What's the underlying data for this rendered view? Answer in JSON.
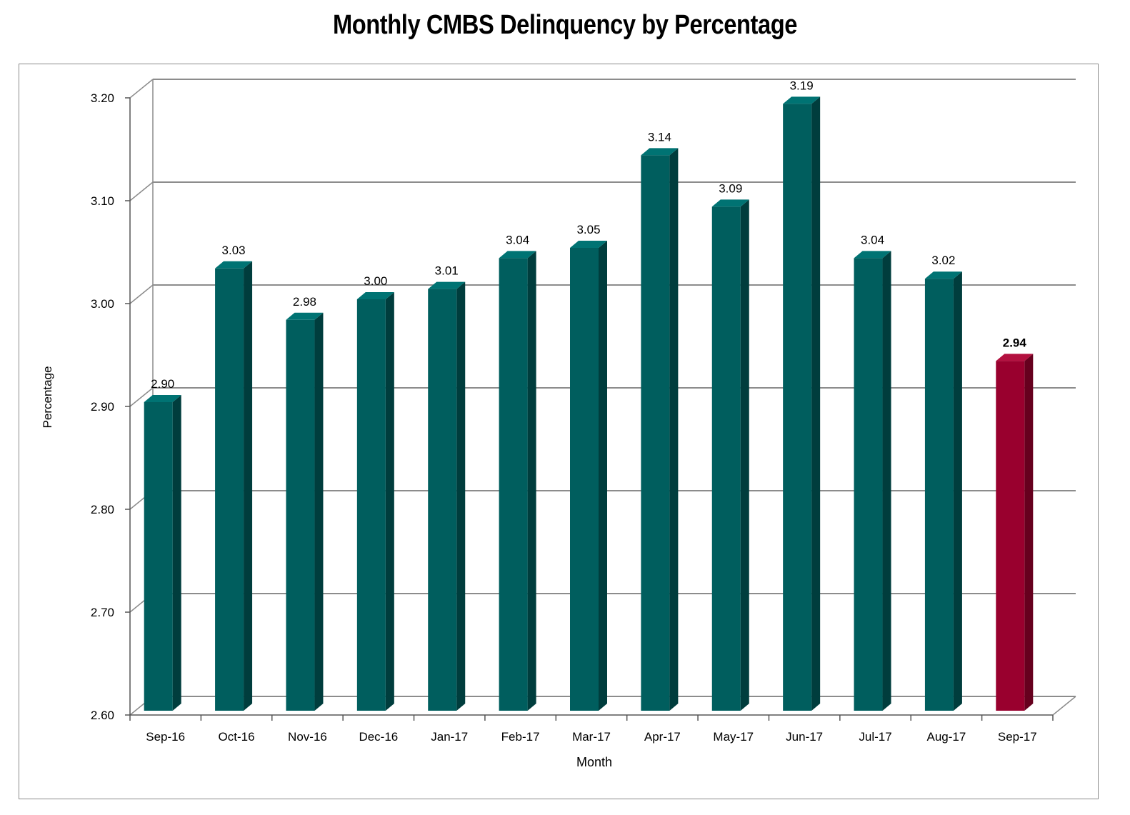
{
  "chart_data": {
    "type": "bar",
    "title": "Monthly CMBS Delinquency by Percentage",
    "xlabel": "Month",
    "ylabel": "Percentage",
    "ylim": [
      2.6,
      3.2
    ],
    "yticks": [
      "2.60",
      "2.70",
      "2.80",
      "2.90",
      "3.00",
      "3.10",
      "3.20"
    ],
    "categories": [
      "Sep-16",
      "Oct-16",
      "Nov-16",
      "Dec-16",
      "Jan-17",
      "Feb-17",
      "Mar-17",
      "Apr-17",
      "May-17",
      "Jun-17",
      "Jul-17",
      "Aug-17",
      "Sep-17"
    ],
    "values": [
      2.9,
      3.03,
      2.98,
      3.0,
      3.01,
      3.04,
      3.05,
      3.14,
      3.09,
      3.19,
      3.04,
      3.02,
      2.94
    ],
    "value_labels": [
      "2.90",
      "3.03",
      "2.98",
      "3.00",
      "3.01",
      "3.04",
      "3.05",
      "3.14",
      "3.09",
      "3.19",
      "3.04",
      "3.02",
      "2.94"
    ],
    "highlight_index": 12,
    "grid": true,
    "legend": "none",
    "colors": {
      "bar_front": "#005e5e",
      "bar_side": "#003d3d",
      "bar_top": "#007373",
      "highlight_front": "#99002e",
      "highlight_side": "#66001e",
      "highlight_top": "#b3103f",
      "gridline": "#8c8c8c"
    }
  }
}
